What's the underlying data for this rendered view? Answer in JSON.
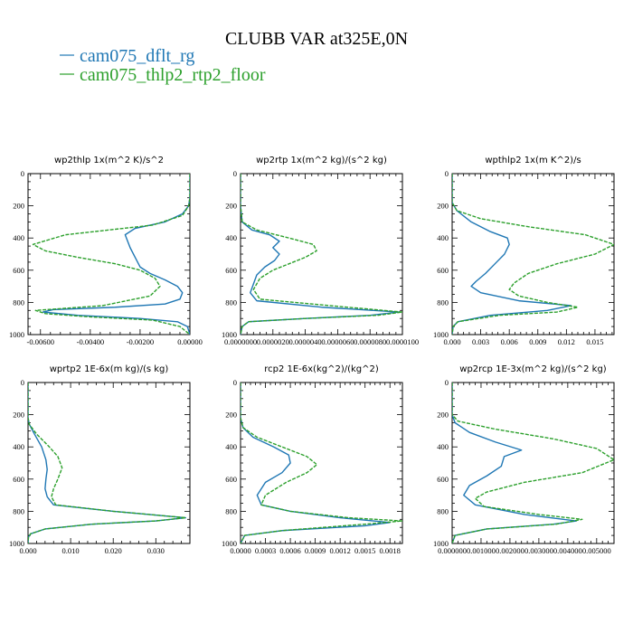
{
  "title": "CLUBB VAR at325E,0N",
  "legend": [
    {
      "label": "cam075_dflt_rg",
      "color": "#1f77b4"
    },
    {
      "label": "cam075_thlp2_rtp2_floor",
      "color": "#2ca02c"
    }
  ],
  "chart_data": [
    {
      "type": "line",
      "title": "wp2thlp   1x(m^2 K)/s^2",
      "xlim": [
        -0.0065,
        0.0
      ],
      "ylim": [
        1000,
        0
      ],
      "x_ticks": [
        "-0.00600",
        "-0.00400",
        "-0.00200",
        "0.00000"
      ],
      "x_tick_values": [
        -0.006,
        -0.004,
        -0.002,
        0.0
      ],
      "y_ticks": [
        "0",
        "200",
        "400",
        "600",
        "800",
        "1000"
      ],
      "y_tick_values": [
        0,
        200,
        400,
        600,
        800,
        1000
      ],
      "series": [
        {
          "name": "cam075_dflt_rg",
          "x": [
            0,
            0,
            -5e-05,
            -0.0003,
            -0.001,
            -0.0022,
            -0.0026,
            -0.0025,
            -0.0024,
            -0.0022,
            -0.002,
            -0.0016,
            -0.001,
            -0.0005,
            -0.0003,
            -0.0004,
            -0.001,
            -0.003,
            -0.0055,
            -0.0059,
            -0.0045,
            -0.002,
            -0.0005,
            -0.0001,
            0
          ],
          "y": [
            0,
            150,
            200,
            250,
            300,
            340,
            380,
            420,
            460,
            520,
            580,
            620,
            660,
            700,
            740,
            780,
            810,
            830,
            845,
            860,
            880,
            900,
            920,
            950,
            1000
          ]
        },
        {
          "name": "cam075_thlp2_rtp2_floor",
          "x": [
            0,
            0,
            -5e-05,
            -0.0003,
            -0.0015,
            -0.005,
            -0.0063,
            -0.0058,
            -0.0045,
            -0.003,
            -0.002,
            -0.0014,
            -0.0012,
            -0.0016,
            -0.0035,
            -0.0062,
            -0.0058,
            -0.004,
            -0.0015,
            -0.0004,
            0
          ],
          "y": [
            0,
            150,
            200,
            260,
            320,
            380,
            440,
            480,
            520,
            560,
            600,
            650,
            700,
            760,
            820,
            850,
            870,
            890,
            910,
            950,
            1000
          ]
        }
      ]
    },
    {
      "type": "line",
      "title": "wp2rtp   1x(m^2 kg)/(s^2 kg)",
      "xlim": [
        0.0,
        1e-05
      ],
      "ylim": [
        1000,
        0
      ],
      "x_ticks": [
        "0.0000000",
        "0.0000020",
        "0.0000040",
        "0.0000060",
        "0.0000080",
        "0.0000100"
      ],
      "x_tick_values": [
        0,
        2e-06,
        4e-06,
        6e-06,
        8e-06,
        1e-05
      ],
      "y_ticks": [
        "0",
        "200",
        "400",
        "600",
        "800",
        "1000"
      ],
      "y_tick_values": [
        0,
        200,
        400,
        600,
        800,
        1000
      ],
      "series": [
        {
          "name": "cam075_dflt_rg",
          "x": [
            0,
            0,
            1e-07,
            7e-07,
            1.8e-06,
            2.4e-06,
            2e-06,
            2.4e-06,
            2.1e-06,
            1.5e-06,
            1e-06,
            6e-07,
            1e-06,
            5e-06,
            9.8e-06,
            8e-06,
            4e-06,
            5e-07,
            1e-07,
            0
          ],
          "y": [
            0,
            200,
            300,
            350,
            380,
            420,
            460,
            500,
            540,
            580,
            630,
            740,
            790,
            830,
            860,
            880,
            900,
            920,
            950,
            1000
          ]
        },
        {
          "name": "cam075_thlp2_rtp2_floor",
          "x": [
            0,
            0,
            1e-07,
            1e-06,
            3e-06,
            4.5e-06,
            4.7e-06,
            4e-06,
            3e-06,
            2e-06,
            1.2e-06,
            8e-07,
            1.2e-06,
            5.5e-06,
            1e-05,
            8.5e-06,
            4e-06,
            5e-07,
            1e-07,
            0
          ],
          "y": [
            0,
            200,
            300,
            350,
            400,
            440,
            480,
            520,
            560,
            600,
            650,
            720,
            780,
            820,
            860,
            880,
            900,
            920,
            950,
            1000
          ]
        }
      ]
    },
    {
      "type": "line",
      "title": "wpthlp2   1x(m K^2)/s",
      "xlim": [
        0.0,
        0.017
      ],
      "ylim": [
        1000,
        0
      ],
      "x_ticks": [
        "0.000",
        "0.003",
        "0.006",
        "0.009",
        "0.012",
        "0.015"
      ],
      "x_tick_values": [
        0,
        0.003,
        0.006,
        0.009,
        0.012,
        0.015
      ],
      "y_ticks": [
        "0",
        "200",
        "400",
        "600",
        "800",
        "1000"
      ],
      "y_tick_values": [
        0,
        200,
        400,
        600,
        800,
        1000
      ],
      "series": [
        {
          "name": "cam075_dflt_rg",
          "x": [
            0,
            0,
            0.0005,
            0.002,
            0.004,
            0.0058,
            0.006,
            0.0055,
            0.0045,
            0.0035,
            0.0025,
            0.002,
            0.003,
            0.007,
            0.0125,
            0.01,
            0.004,
            0.0006,
            0.0001,
            0
          ],
          "y": [
            0,
            180,
            230,
            300,
            360,
            400,
            440,
            500,
            560,
            620,
            670,
            700,
            740,
            790,
            820,
            850,
            880,
            920,
            950,
            1000
          ]
        },
        {
          "name": "cam075_thlp2_rtp2_floor",
          "x": [
            0,
            0,
            0.0005,
            0.003,
            0.008,
            0.014,
            0.017,
            0.015,
            0.011,
            0.008,
            0.0065,
            0.006,
            0.007,
            0.01,
            0.0132,
            0.011,
            0.005,
            0.0006,
            0.0001,
            0
          ],
          "y": [
            0,
            180,
            230,
            280,
            330,
            380,
            440,
            500,
            560,
            620,
            680,
            720,
            760,
            800,
            830,
            860,
            880,
            920,
            950,
            1000
          ]
        }
      ]
    },
    {
      "type": "line",
      "title": "wprtp2   1E-6x(m kg)/(s kg)",
      "xlim": [
        0.0,
        0.038
      ],
      "ylim": [
        1000,
        0
      ],
      "x_ticks": [
        "0.000",
        "0.010",
        "0.020",
        "0.030"
      ],
      "x_tick_values": [
        0,
        0.01,
        0.02,
        0.03
      ],
      "y_ticks": [
        "0",
        "200",
        "400",
        "600",
        "800",
        "1000"
      ],
      "y_tick_values": [
        0,
        200,
        400,
        600,
        800,
        1000
      ],
      "series": [
        {
          "name": "cam075_dflt_rg",
          "x": [
            0,
            0,
            0.0003,
            0.0015,
            0.0032,
            0.0042,
            0.0045,
            0.0042,
            0.004,
            0.0045,
            0.006,
            0.02,
            0.037,
            0.03,
            0.015,
            0.004,
            0.0006,
            0.0001,
            0
          ],
          "y": [
            0,
            220,
            260,
            320,
            400,
            480,
            540,
            600,
            660,
            710,
            760,
            800,
            840,
            860,
            880,
            910,
            940,
            960,
            1000
          ]
        },
        {
          "name": "cam075_thlp2_rtp2_floor",
          "x": [
            0,
            0,
            0.0003,
            0.002,
            0.005,
            0.007,
            0.008,
            0.007,
            0.006,
            0.0055,
            0.0065,
            0.02,
            0.037,
            0.03,
            0.015,
            0.004,
            0.0006,
            0.0001,
            0
          ],
          "y": [
            0,
            220,
            260,
            320,
            400,
            460,
            530,
            600,
            660,
            710,
            760,
            800,
            840,
            860,
            880,
            910,
            940,
            960,
            1000
          ]
        }
      ]
    },
    {
      "type": "line",
      "title": "rcp2   1E-6x(kg^2)/(kg^2)",
      "xlim": [
        0.0,
        0.00195
      ],
      "ylim": [
        1000,
        0
      ],
      "x_ticks": [
        "0.0000",
        "0.0003",
        "0.0006",
        "0.0009",
        "0.0012",
        "0.0015",
        "0.0018"
      ],
      "x_tick_values": [
        0,
        0.0003,
        0.0006,
        0.0009,
        0.0012,
        0.0015,
        0.0018
      ],
      "y_ticks": [
        "0",
        "200",
        "400",
        "600",
        "800",
        "1000"
      ],
      "y_tick_values": [
        0,
        200,
        400,
        600,
        800,
        1000
      ],
      "series": [
        {
          "name": "cam075_dflt_rg",
          "x": [
            0,
            0,
            3e-05,
            0.00015,
            0.0004,
            0.00058,
            0.0006,
            0.0005,
            0.0003,
            0.0002,
            0.00025,
            0.0006,
            0.0012,
            0.0018,
            0.0015,
            0.0005,
            5e-05,
            0
          ],
          "y": [
            0,
            220,
            280,
            340,
            400,
            450,
            500,
            560,
            620,
            700,
            760,
            800,
            840,
            870,
            890,
            920,
            950,
            1000
          ]
        },
        {
          "name": "cam075_thlp2_rtp2_floor",
          "x": [
            0,
            0,
            3e-05,
            0.0002,
            0.0005,
            0.0008,
            0.00092,
            0.0008,
            0.00055,
            0.0003,
            0.00025,
            0.0006,
            0.0013,
            0.00195,
            0.0015,
            0.0005,
            5e-05,
            0
          ],
          "y": [
            0,
            220,
            280,
            340,
            400,
            460,
            510,
            560,
            620,
            700,
            760,
            800,
            840,
            860,
            880,
            920,
            950,
            1000
          ]
        }
      ]
    },
    {
      "type": "line",
      "title": "wp2rcp   1E-3x(m^2 kg)/(s^2 kg)",
      "xlim": [
        0.0,
        0.0056
      ],
      "ylim": [
        1000,
        0
      ],
      "x_ticks": [
        "0.000000",
        "0.001000",
        "0.002000",
        "0.003000",
        "0.004000",
        "0.005000"
      ],
      "x_tick_values": [
        0,
        0.001,
        0.002,
        0.003,
        0.004,
        0.005
      ],
      "y_ticks": [
        "0",
        "200",
        "400",
        "600",
        "800",
        "1000"
      ],
      "y_tick_values": [
        0,
        200,
        400,
        600,
        800,
        1000
      ],
      "series": [
        {
          "name": "cam075_dflt_rg",
          "x": [
            0,
            0,
            0.0001,
            0.0006,
            0.0015,
            0.0024,
            0.0018,
            0.0017,
            0.0012,
            0.0006,
            0.0004,
            0.0008,
            0.0025,
            0.0043,
            0.0035,
            0.0012,
            0.0001,
            0
          ],
          "y": [
            0,
            200,
            250,
            310,
            370,
            420,
            460,
            520,
            580,
            640,
            700,
            760,
            820,
            860,
            880,
            910,
            950,
            1000
          ]
        },
        {
          "name": "cam075_thlp2_rtp2_floor",
          "x": [
            0,
            0,
            0.0002,
            0.0015,
            0.0035,
            0.005,
            0.0056,
            0.0045,
            0.0025,
            0.0012,
            0.0008,
            0.0011,
            0.003,
            0.0045,
            0.0036,
            0.0012,
            0.0001,
            0
          ],
          "y": [
            0,
            200,
            240,
            290,
            350,
            410,
            480,
            560,
            620,
            680,
            720,
            770,
            820,
            850,
            880,
            910,
            950,
            1000
          ]
        }
      ]
    }
  ]
}
